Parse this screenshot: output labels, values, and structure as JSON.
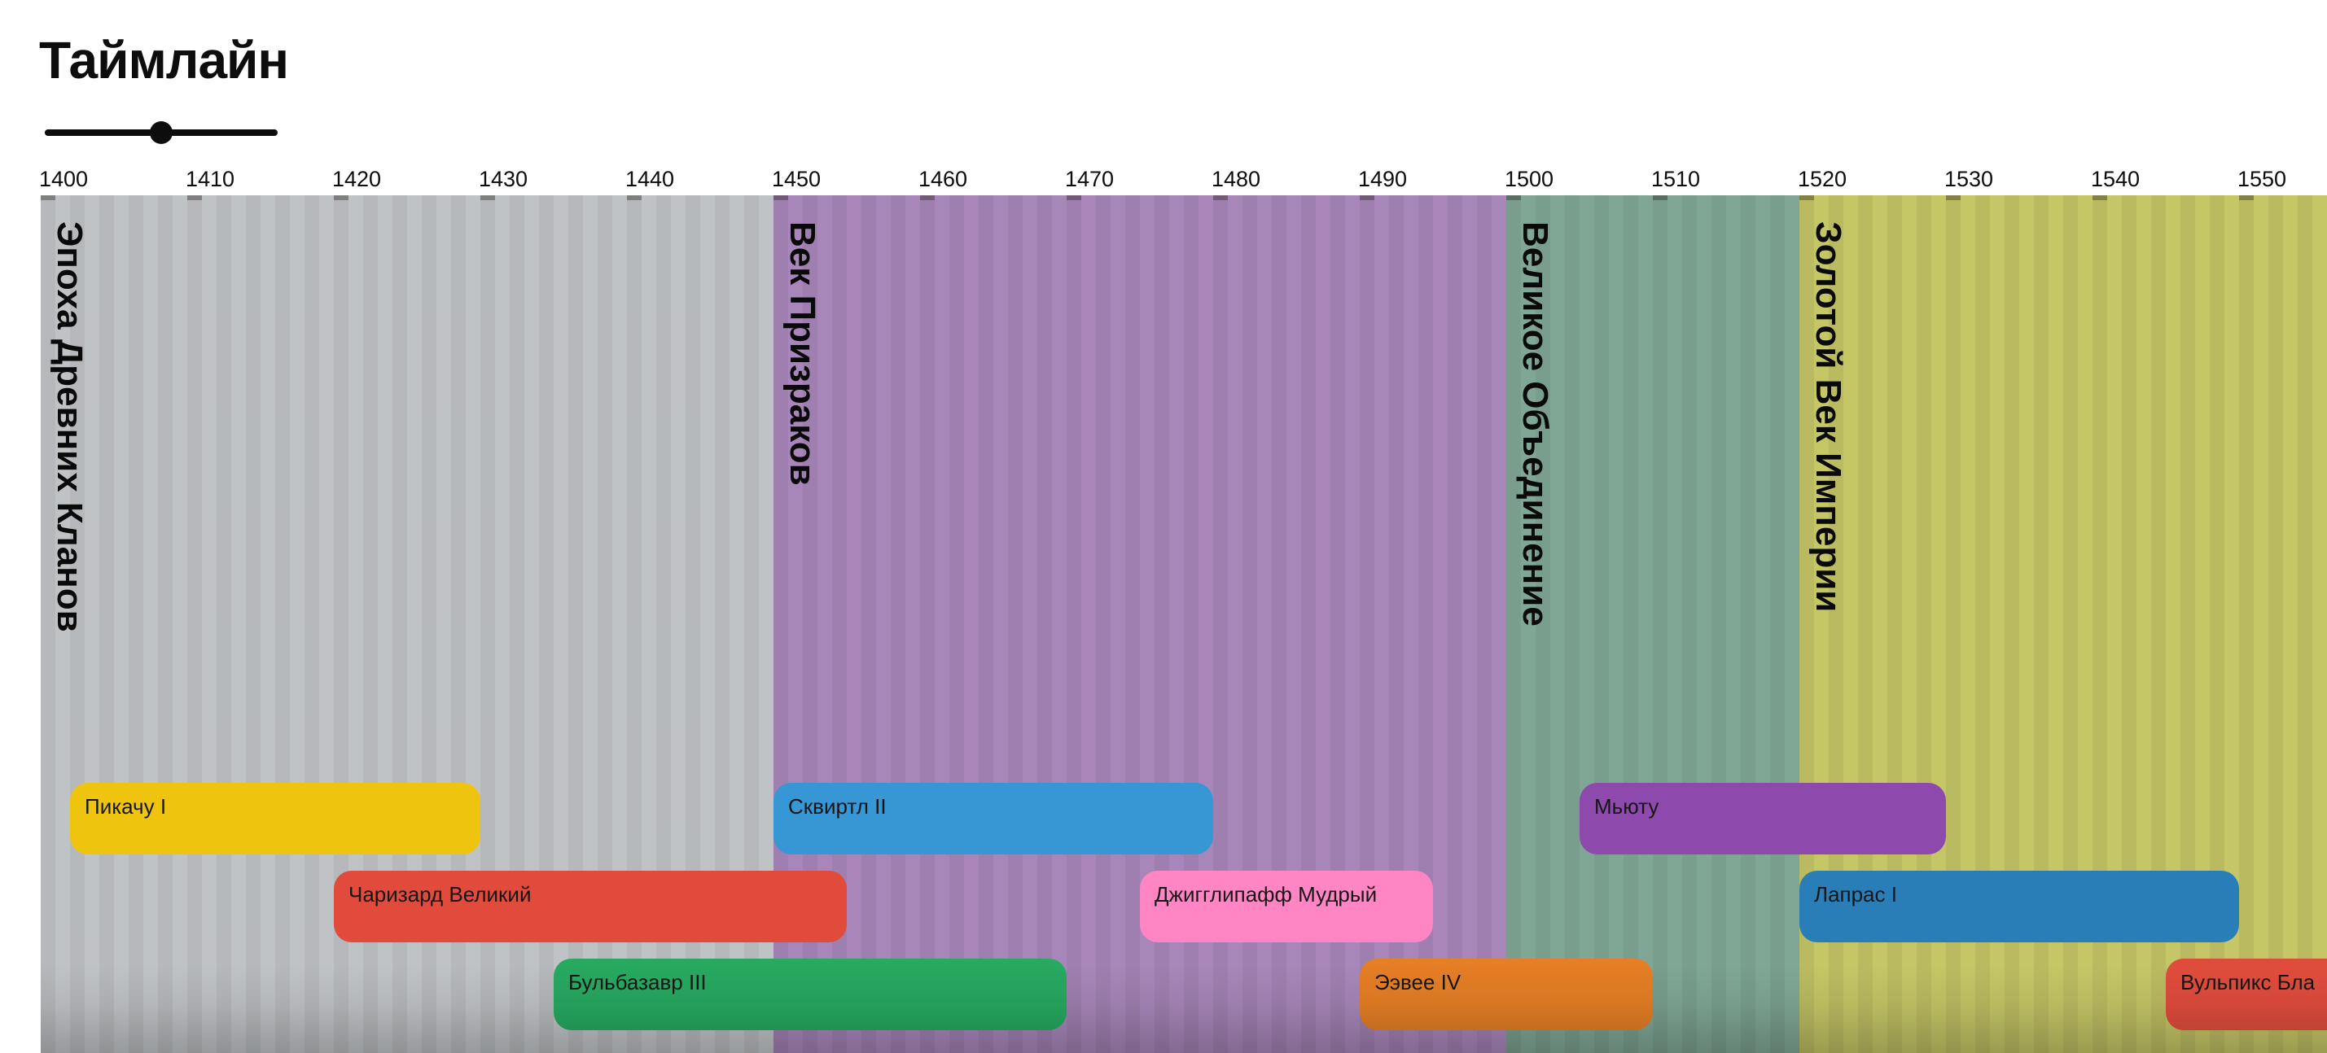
{
  "page": {
    "title": "Таймлайн"
  },
  "axis": {
    "tick_years": [
      1400,
      1410,
      1420,
      1430,
      1440,
      1450,
      1460,
      1470,
      1480,
      1490,
      1500,
      1510,
      1520,
      1530,
      1540,
      1550
    ]
  },
  "chart_data": {
    "type": "table",
    "title": "Таймлайн",
    "x_axis": {
      "start_year": 1400,
      "visible_end_year": 1556,
      "tick_step": 10
    },
    "eras": [
      {
        "name": "Эпоха Древних Кланов",
        "start": 1400,
        "end": 1450,
        "color": "#c0c3c6"
      },
      {
        "name": "Век Призраков",
        "start": 1450,
        "end": 1500,
        "color": "#a886b9"
      },
      {
        "name": "Великое Объединение",
        "start": 1500,
        "end": 1520,
        "color": "#80a795"
      },
      {
        "name": "Золотой Век Империи",
        "start": 1520,
        "end": 1556,
        "color": "#c5c666",
        "clipped_right": true
      }
    ],
    "events": [
      {
        "label": "Пикачу I",
        "start": 1402,
        "end": 1430,
        "row": 0,
        "color": "#efc40f"
      },
      {
        "label": "Сквиртл II",
        "start": 1450,
        "end": 1480,
        "row": 0,
        "color": "#3796d4"
      },
      {
        "label": "Мьюту",
        "start": 1505,
        "end": 1530,
        "row": 0,
        "color": "#8e49ac"
      },
      {
        "label": "Чаризард Великий",
        "start": 1420,
        "end": 1455,
        "row": 1,
        "color": "#e04b3b"
      },
      {
        "label": "Джигглипафф Мудрый",
        "start": 1475,
        "end": 1495,
        "row": 1,
        "color": "#ff85c4"
      },
      {
        "label": "Лапрас I",
        "start": 1520,
        "end": 1550,
        "row": 1,
        "color": "#2a7eb8"
      },
      {
        "label": "Бульбазавр III",
        "start": 1435,
        "end": 1470,
        "row": 2,
        "color": "#27a960"
      },
      {
        "label": "Ээвее IV",
        "start": 1490,
        "end": 1510,
        "row": 2,
        "color": "#e57e25"
      },
      {
        "label": "Вульпикс Бла",
        "start": 1545,
        "end": 1558,
        "row": 2,
        "color": "#e04c3c",
        "clipped_right": true
      }
    ]
  }
}
